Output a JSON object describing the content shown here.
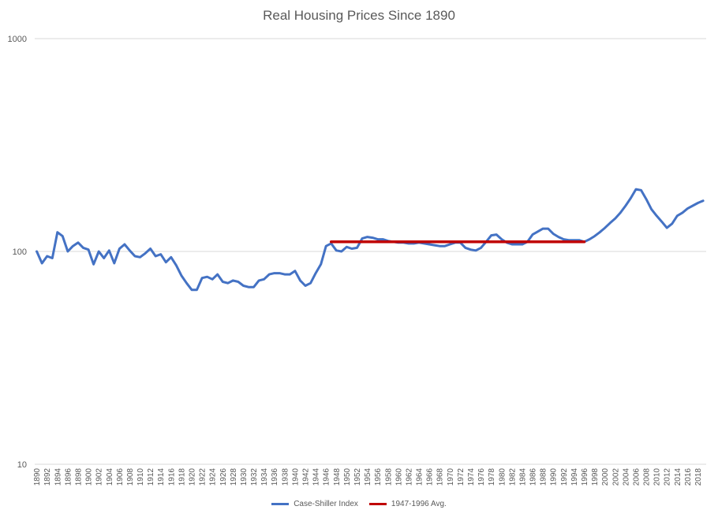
{
  "chart_data": {
    "type": "line",
    "title": "Real Housing Prices Since 1890",
    "y_scale": "log",
    "ylim": [
      10,
      1000
    ],
    "y_ticks": [
      "10",
      "100",
      "1000"
    ],
    "x_ticks": [
      "1890",
      "1892",
      "1894",
      "1896",
      "1898",
      "1900",
      "1902",
      "1904",
      "1906",
      "1908",
      "1910",
      "1912",
      "1914",
      "1916",
      "1918",
      "1920",
      "1922",
      "1924",
      "1926",
      "1928",
      "1930",
      "1932",
      "1934",
      "1936",
      "1938",
      "1940",
      "1942",
      "1944",
      "1946",
      "1948",
      "1950",
      "1952",
      "1954",
      "1956",
      "1958",
      "1960",
      "1962",
      "1964",
      "1966",
      "1968",
      "1970",
      "1972",
      "1974",
      "1976",
      "1978",
      "1980",
      "1982",
      "1984",
      "1986",
      "1988",
      "1990",
      "1992",
      "1994",
      "1996",
      "1998",
      "2000",
      "2002",
      "2004",
      "2006",
      "2008",
      "2010",
      "2012",
      "2014",
      "2016",
      "2018"
    ],
    "grid": true,
    "legend_position": "bottom",
    "series": [
      {
        "name": "Case-Shiller Index",
        "color": "#4472c4",
        "x": [
          1890,
          1891,
          1892,
          1893,
          1894,
          1895,
          1896,
          1897,
          1898,
          1899,
          1900,
          1901,
          1902,
          1903,
          1904,
          1905,
          1906,
          1907,
          1908,
          1909,
          1910,
          1911,
          1912,
          1913,
          1914,
          1915,
          1916,
          1917,
          1918,
          1919,
          1920,
          1921,
          1922,
          1923,
          1924,
          1925,
          1926,
          1927,
          1928,
          1929,
          1930,
          1931,
          1932,
          1933,
          1934,
          1935,
          1936,
          1937,
          1938,
          1939,
          1940,
          1941,
          1942,
          1943,
          1944,
          1945,
          1946,
          1947,
          1948,
          1949,
          1950,
          1951,
          1952,
          1953,
          1954,
          1955,
          1956,
          1957,
          1958,
          1959,
          1960,
          1961,
          1962,
          1963,
          1964,
          1965,
          1966,
          1967,
          1968,
          1969,
          1970,
          1971,
          1972,
          1973,
          1974,
          1975,
          1976,
          1977,
          1978,
          1979,
          1980,
          1981,
          1982,
          1983,
          1984,
          1985,
          1986,
          1987,
          1988,
          1989,
          1990,
          1991,
          1992,
          1993,
          1994,
          1995,
          1996,
          1997,
          1998,
          1999,
          2000,
          2001,
          2002,
          2003,
          2004,
          2005,
          2006,
          2007,
          2008,
          2009,
          2010,
          2011,
          2012,
          2013,
          2014,
          2015,
          2016,
          2017,
          2018,
          2019
        ],
        "values": [
          100,
          88,
          95,
          93,
          123,
          118,
          100,
          106,
          110,
          104,
          102,
          87,
          100,
          93,
          101,
          88,
          103,
          108,
          101,
          95,
          94,
          98,
          103,
          95,
          97,
          89,
          94,
          86,
          77,
          71,
          66,
          66,
          75,
          76,
          74,
          78,
          72,
          71,
          73,
          72,
          69,
          68,
          68,
          73,
          74,
          78,
          79,
          79,
          78,
          78,
          81,
          73,
          69,
          71,
          79,
          87,
          106,
          109,
          101,
          100,
          105,
          103,
          104,
          115,
          117,
          116,
          114,
          114,
          112,
          111,
          110,
          110,
          109,
          109,
          110,
          109,
          108,
          107,
          106,
          106,
          108,
          110,
          110,
          104,
          102,
          101,
          104,
          111,
          119,
          120,
          114,
          110,
          108,
          108,
          108,
          111,
          120,
          124,
          128,
          128,
          121,
          117,
          114,
          113,
          113,
          113,
          111,
          114,
          118,
          123,
          129,
          136,
          143,
          152,
          164,
          178,
          196,
          194,
          176,
          158,
          147,
          138,
          129,
          135,
          147,
          152,
          159,
          164,
          169,
          173
        ]
      },
      {
        "name": "1947-1996 Avg.",
        "color": "#c00000",
        "x": [
          1947,
          1996
        ],
        "values": [
          111,
          111
        ]
      }
    ]
  }
}
